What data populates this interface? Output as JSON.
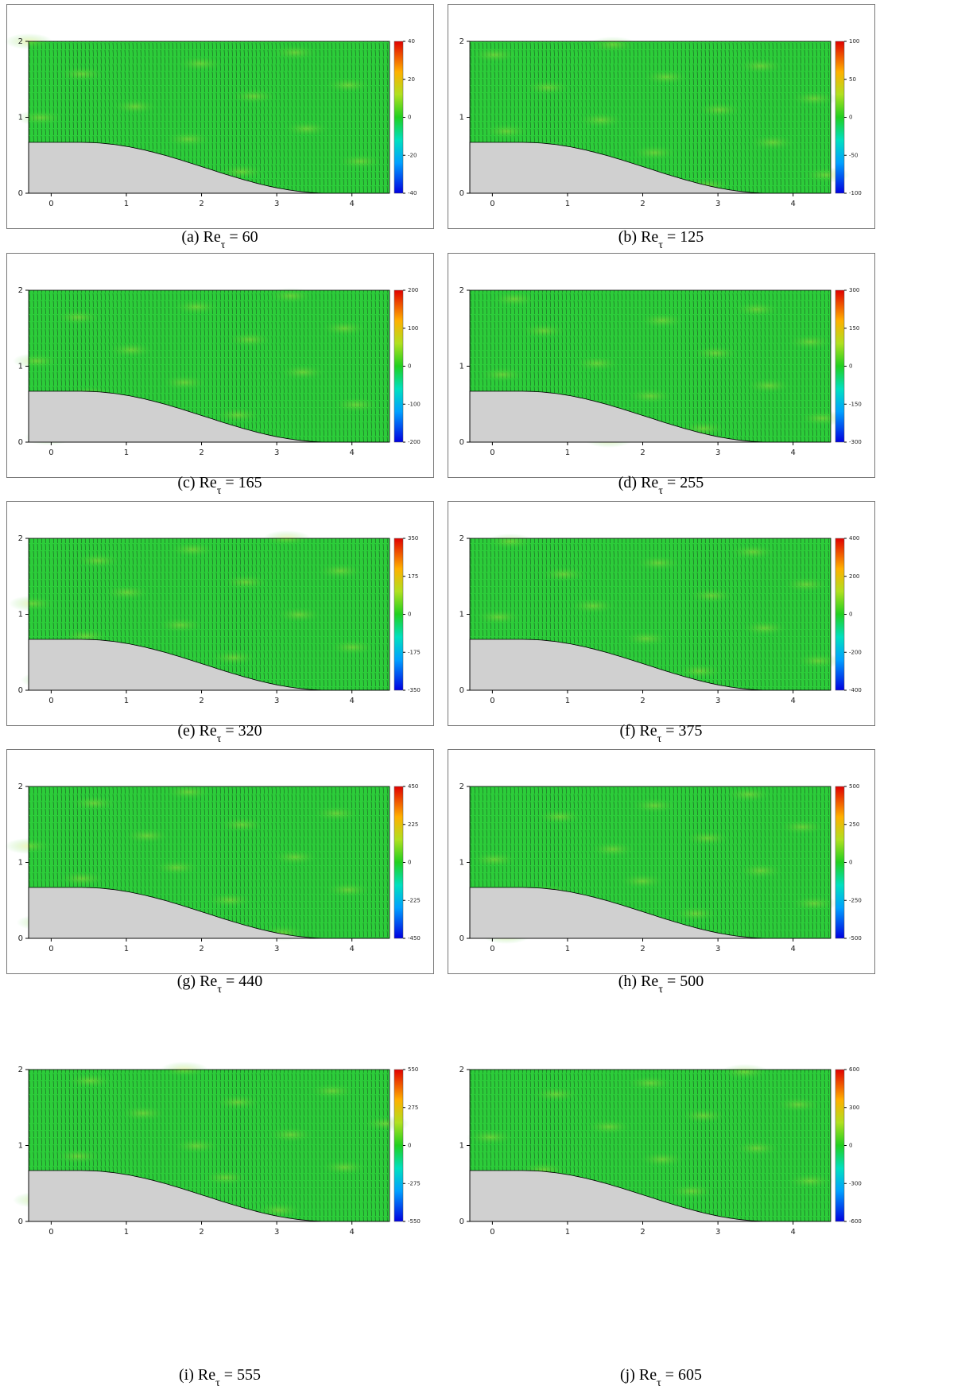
{
  "chart_data": [
    {
      "type": "contour",
      "caption": [
        "(a) Re",
        "τ",
        " = 60"
      ],
      "xlim": [
        -0.3,
        4.5
      ],
      "xticks": [
        0,
        1,
        2,
        3,
        4
      ],
      "ylim": [
        0,
        2
      ],
      "yticks": [
        0,
        1,
        2
      ],
      "clim": [
        -40,
        40
      ],
      "cticks": [
        -40,
        -20,
        0,
        20,
        40
      ]
    },
    {
      "type": "contour",
      "caption": [
        "(b) Re",
        "τ",
        " = 125"
      ],
      "xlim": [
        -0.3,
        4.5
      ],
      "xticks": [
        0,
        1,
        2,
        3,
        4
      ],
      "ylim": [
        0,
        2
      ],
      "yticks": [
        0,
        1,
        2
      ],
      "clim": [
        -100,
        100
      ],
      "cticks": [
        -100,
        -50,
        0,
        50,
        100
      ]
    },
    {
      "type": "contour",
      "caption": [
        "(c) Re",
        "τ",
        " = 165"
      ],
      "xlim": [
        -0.3,
        4.5
      ],
      "xticks": [
        0,
        1,
        2,
        3,
        4
      ],
      "ylim": [
        0,
        2
      ],
      "yticks": [
        0,
        1,
        2
      ],
      "clim": [
        -200,
        200
      ],
      "cticks": [
        -200,
        -100,
        0,
        100,
        200
      ]
    },
    {
      "type": "contour",
      "caption": [
        "(d) Re",
        "τ",
        " = 255"
      ],
      "xlim": [
        -0.3,
        4.5
      ],
      "xticks": [
        0,
        1,
        2,
        3,
        4
      ],
      "ylim": [
        0,
        2
      ],
      "yticks": [
        0,
        1,
        2
      ],
      "clim": [
        -300,
        300
      ],
      "cticks": [
        -300,
        -150,
        0,
        150,
        300
      ]
    },
    {
      "type": "contour",
      "caption": [
        "(e) Re",
        "τ",
        " = 320"
      ],
      "xlim": [
        -0.3,
        4.5
      ],
      "xticks": [
        0,
        1,
        2,
        3,
        4
      ],
      "ylim": [
        0,
        2
      ],
      "yticks": [
        0,
        1,
        2
      ],
      "clim": [
        -350,
        350
      ],
      "cticks": [
        -350,
        -175,
        0,
        175,
        350
      ]
    },
    {
      "type": "contour",
      "caption": [
        "(f) Re",
        "τ",
        " = 375"
      ],
      "xlim": [
        -0.3,
        4.5
      ],
      "xticks": [
        0,
        1,
        2,
        3,
        4
      ],
      "ylim": [
        0,
        2
      ],
      "yticks": [
        0,
        1,
        2
      ],
      "clim": [
        -400,
        400
      ],
      "cticks": [
        -400,
        -200,
        0,
        200,
        400
      ]
    },
    {
      "type": "contour",
      "caption": [
        "(g) Re",
        "τ",
        " = 440"
      ],
      "xlim": [
        -0.3,
        4.5
      ],
      "xticks": [
        0,
        1,
        2,
        3,
        4
      ],
      "ylim": [
        0,
        2
      ],
      "yticks": [
        0,
        1,
        2
      ],
      "clim": [
        -450,
        450
      ],
      "cticks": [
        -450,
        -225,
        0,
        225,
        450
      ]
    },
    {
      "type": "contour",
      "caption": [
        "(h) Re",
        "τ",
        " = 500"
      ],
      "xlim": [
        -0.3,
        4.5
      ],
      "xticks": [
        0,
        1,
        2,
        3,
        4
      ],
      "ylim": [
        0,
        2
      ],
      "yticks": [
        0,
        1,
        2
      ],
      "clim": [
        -500,
        500
      ],
      "cticks": [
        -500,
        -250,
        0,
        250,
        500
      ]
    },
    {
      "type": "contour",
      "caption": [
        "(i) Re",
        "τ",
        " = 555"
      ],
      "xlim": [
        -0.3,
        4.5
      ],
      "xticks": [
        0,
        1,
        2,
        3,
        4
      ],
      "ylim": [
        0,
        2
      ],
      "yticks": [
        0,
        1,
        2
      ],
      "clim": [
        -550,
        550
      ],
      "cticks": [
        -550,
        -275,
        0,
        275,
        550
      ]
    },
    {
      "type": "contour",
      "caption": [
        "(j) Re",
        "τ",
        " = 605"
      ],
      "xlim": [
        -0.3,
        4.5
      ],
      "xticks": [
        0,
        1,
        2,
        3,
        4
      ],
      "ylim": [
        0,
        2
      ],
      "yticks": [
        0,
        1,
        2
      ],
      "clim": [
        -600,
        600
      ],
      "cticks": [
        -600,
        -300,
        0,
        300,
        600
      ]
    }
  ]
}
